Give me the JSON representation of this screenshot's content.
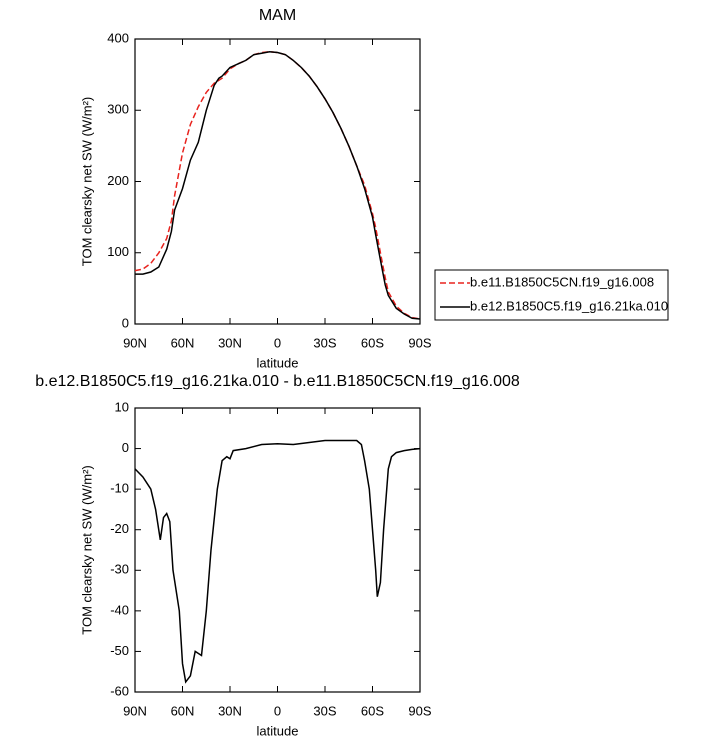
{
  "chart_data": [
    {
      "type": "line",
      "title": "MAM",
      "xlabel": "latitude",
      "ylabel": "TOM clearsky net SW (W/m²)",
      "x": [
        90,
        85,
        80,
        75,
        70,
        67,
        65,
        60,
        55,
        50,
        45,
        40,
        37,
        35,
        30,
        25,
        20,
        15,
        10,
        5,
        0,
        -5,
        -10,
        -15,
        -20,
        -25,
        -30,
        -35,
        -40,
        -45,
        -50,
        -55,
        -60,
        -62,
        -65,
        -68,
        -70,
        -75,
        -80,
        -85,
        -90
      ],
      "series": [
        {
          "name": "b.e11.B1850C5CN.f19_g16.008",
          "color": "#e8231e",
          "linestyle": "dashed",
          "values": [
            75,
            77,
            85,
            100,
            120,
            145,
            180,
            240,
            280,
            305,
            325,
            338,
            342,
            345,
            358,
            365,
            370,
            378,
            381,
            382,
            381,
            378,
            370,
            360,
            348,
            333,
            316,
            297,
            275,
            250,
            222,
            195,
            155,
            135,
            100,
            65,
            45,
            25,
            15,
            9,
            7
          ]
        },
        {
          "name": "b.e12.B1850C5.f19_g16.21ka.010",
          "color": "#000000",
          "linestyle": "solid",
          "values": [
            70,
            70,
            73,
            80,
            105,
            130,
            160,
            190,
            230,
            255,
            300,
            335,
            345,
            348,
            360,
            365,
            370,
            378,
            380,
            382,
            381,
            378,
            370,
            360,
            348,
            333,
            316,
            297,
            275,
            250,
            222,
            190,
            150,
            125,
            90,
            55,
            40,
            22,
            14,
            8,
            7
          ]
        }
      ],
      "xlim": [
        90,
        -90
      ],
      "xticks": [
        {
          "value": 90,
          "label": "90N"
        },
        {
          "value": 60,
          "label": "60N"
        },
        {
          "value": 30,
          "label": "30N"
        },
        0,
        {
          "value": -30,
          "label": "30S"
        },
        {
          "value": -60,
          "label": "60S"
        },
        {
          "value": -90,
          "label": "90S"
        }
      ],
      "ylim": [
        0,
        400
      ],
      "yticks": [
        0,
        100,
        200,
        300,
        400
      ],
      "legend": "right"
    },
    {
      "type": "line",
      "title": "b.e12.B1850C5.f19_g16.21ka.010 - b.e11.B1850C5CN.f19_g16.008",
      "xlabel": "latitude",
      "ylabel": "TOM clearsky net SW (W/m²)",
      "x": [
        90,
        85,
        80,
        77,
        74,
        72,
        70,
        68,
        66,
        62,
        60,
        58,
        55,
        52,
        48,
        45,
        42,
        38,
        35,
        32,
        30,
        28,
        20,
        10,
        0,
        -10,
        -20,
        -30,
        -40,
        -50,
        -53,
        -55,
        -58,
        -60,
        -62,
        -63,
        -65,
        -67,
        -70,
        -72,
        -75,
        -80,
        -85,
        -90
      ],
      "series": [
        {
          "color": "#000000",
          "linestyle": "solid",
          "values": [
            -5,
            -7,
            -10,
            -15,
            -22.5,
            -17,
            -16,
            -18,
            -30,
            -40,
            -53,
            -57.5,
            -56,
            -50,
            -51,
            -40,
            -25,
            -10,
            -3,
            -2,
            -2.5,
            -0.5,
            0,
            1,
            1.2,
            1,
            1.5,
            2,
            2,
            2,
            1,
            -3,
            -10,
            -20,
            -30,
            -36.5,
            -33,
            -20,
            -5,
            -2,
            -1,
            -0.5,
            -0.2,
            0
          ]
        }
      ],
      "xlim": [
        90,
        -90
      ],
      "xticks": [
        {
          "value": 90,
          "label": "90N"
        },
        {
          "value": 60,
          "label": "60N"
        },
        {
          "value": 30,
          "label": "30N"
        },
        0,
        {
          "value": -30,
          "label": "30S"
        },
        {
          "value": -60,
          "label": "60S"
        },
        {
          "value": -90,
          "label": "90S"
        }
      ],
      "ylim": [
        -60,
        10
      ],
      "yticks": [
        -60,
        -50,
        -40,
        -30,
        -20,
        -10,
        0,
        10
      ]
    }
  ]
}
